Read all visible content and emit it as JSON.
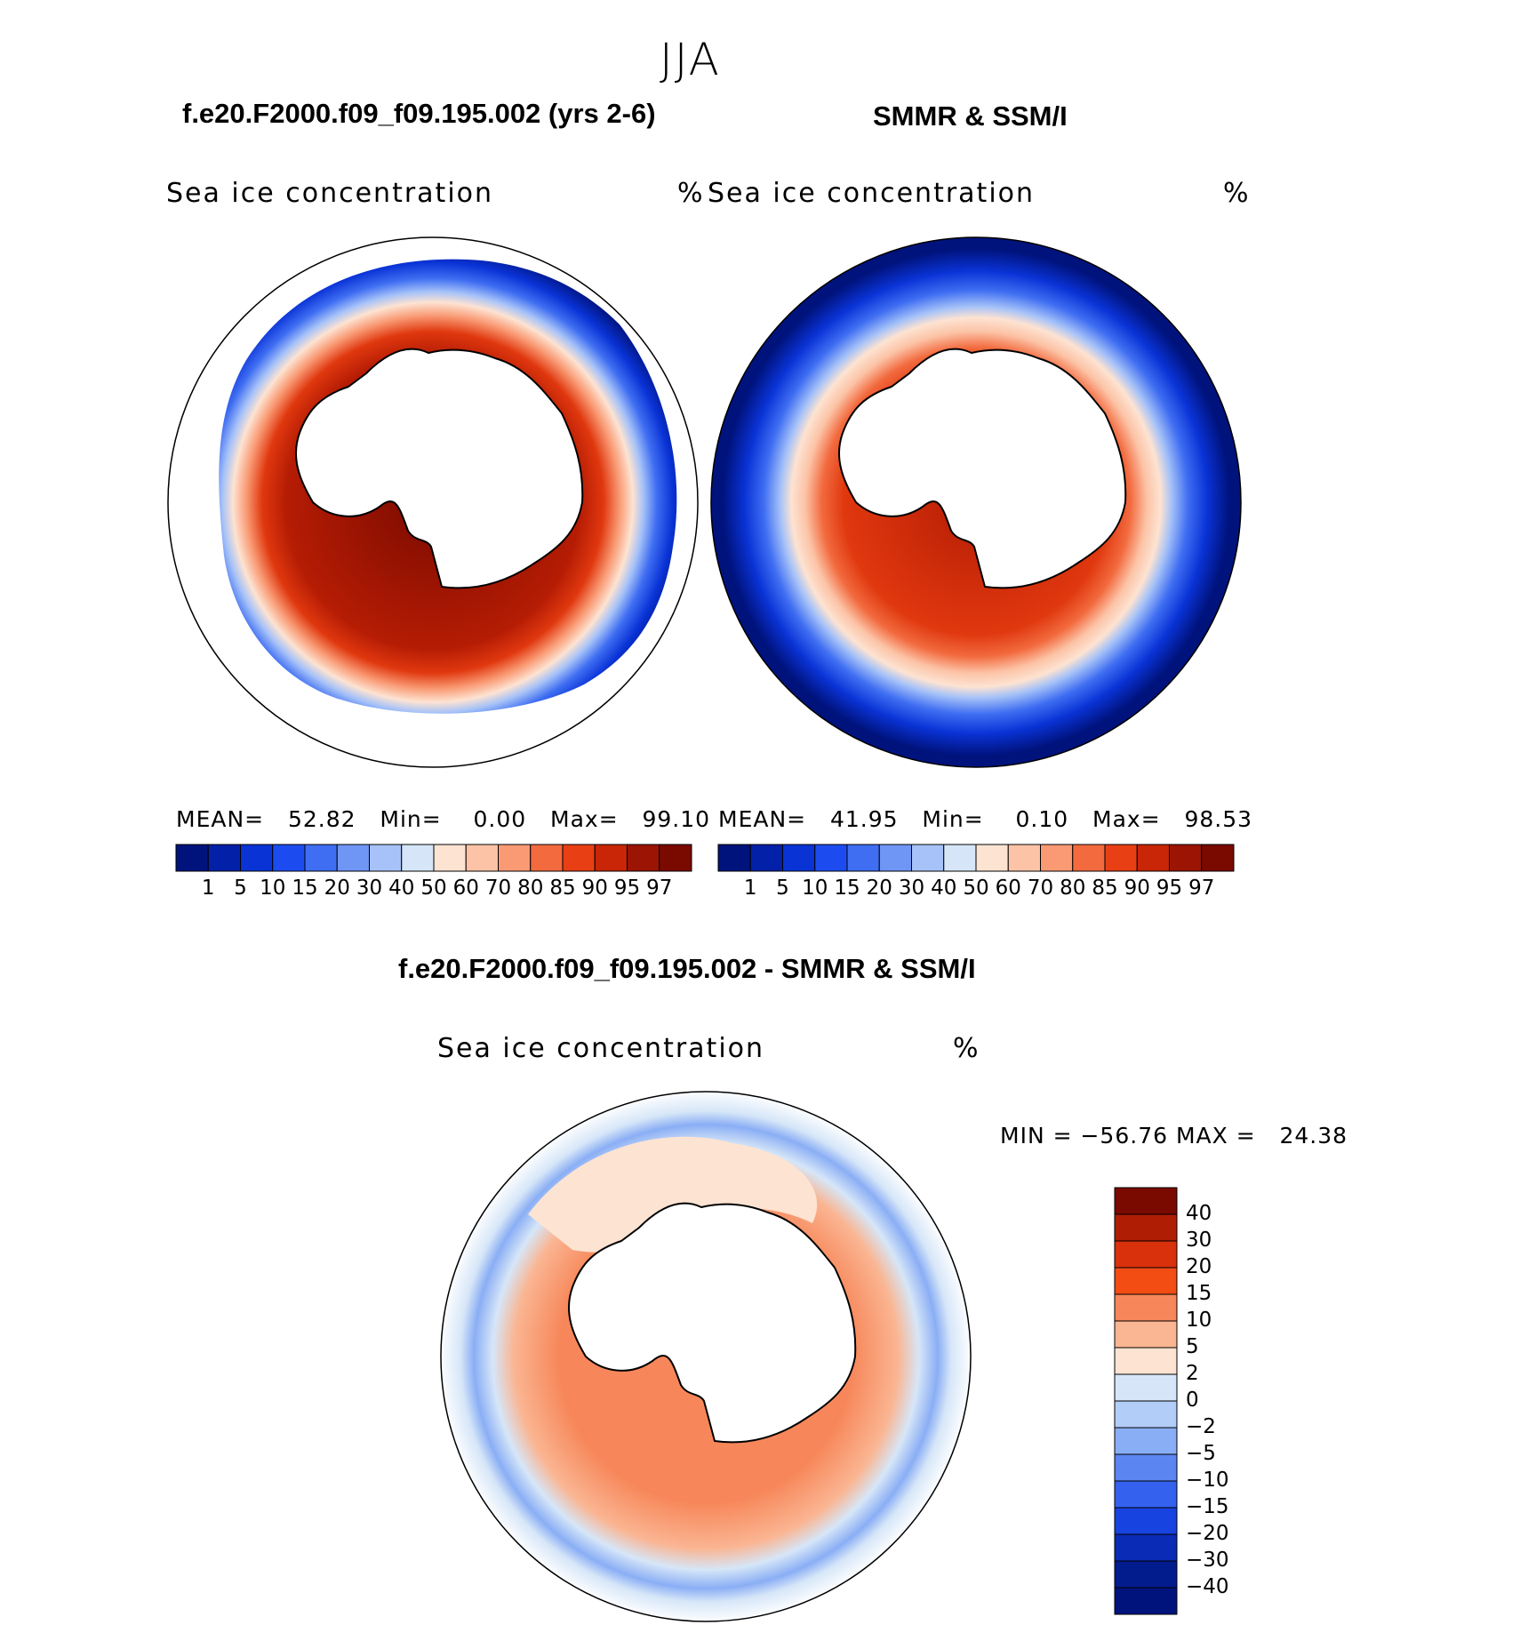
{
  "season": "JJA",
  "top_left": {
    "title": "f.e20.F2000.f09_f09.195.002 (yrs 2-6)",
    "variable": "Sea ice concentration",
    "units": "%",
    "stats": {
      "mean_label": "MEAN=",
      "mean": "52.82",
      "min_label": "Min=",
      "min": "0.00",
      "max_label": "Max=",
      "max": "99.10"
    }
  },
  "top_right": {
    "title": "SMMR & SSM/I",
    "variable": "Sea ice concentration",
    "units": "%",
    "stats": {
      "mean_label": "MEAN=",
      "mean": "41.95",
      "min_label": "Min=",
      "min": "0.10",
      "max_label": "Max=",
      "max": "98.53"
    }
  },
  "diff": {
    "title": "f.e20.F2000.f09_f09.195.002 - SMMR & SSM/I",
    "variable": "Sea ice concentration",
    "units": "%",
    "minmax": "MIN = −56.76 MAX =   24.38"
  },
  "conc_colorbar": {
    "labels": [
      "1",
      "5",
      "10",
      "15",
      "20",
      "30",
      "40",
      "50",
      "60",
      "70",
      "80",
      "85",
      "90",
      "95",
      "97"
    ],
    "colors": [
      "#00137d",
      "#0320a8",
      "#0a33d6",
      "#1c4cf0",
      "#3f6ef2",
      "#6f95f5",
      "#a6c2f8",
      "#d6e6f8",
      "#fde3d2",
      "#fcc3a6",
      "#f99a74",
      "#f26a3e",
      "#e83f15",
      "#c82607",
      "#9b1404",
      "#7a0a00"
    ]
  },
  "diff_colorbar": {
    "labels": [
      "40",
      "30",
      "20",
      "15",
      "10",
      "5",
      "2",
      "0",
      "−2",
      "−5",
      "−10",
      "−15",
      "−20",
      "−30",
      "−40"
    ],
    "colors": [
      "#7a0a00",
      "#b01d05",
      "#d9310b",
      "#f34d14",
      "#f7875a",
      "#fab592",
      "#fde3d2",
      "#d6e6f8",
      "#b2cdf7",
      "#8aaef5",
      "#5b86f2",
      "#3462ee",
      "#1743e0",
      "#0a2bb5",
      "#021c8d",
      "#00137d"
    ]
  }
}
